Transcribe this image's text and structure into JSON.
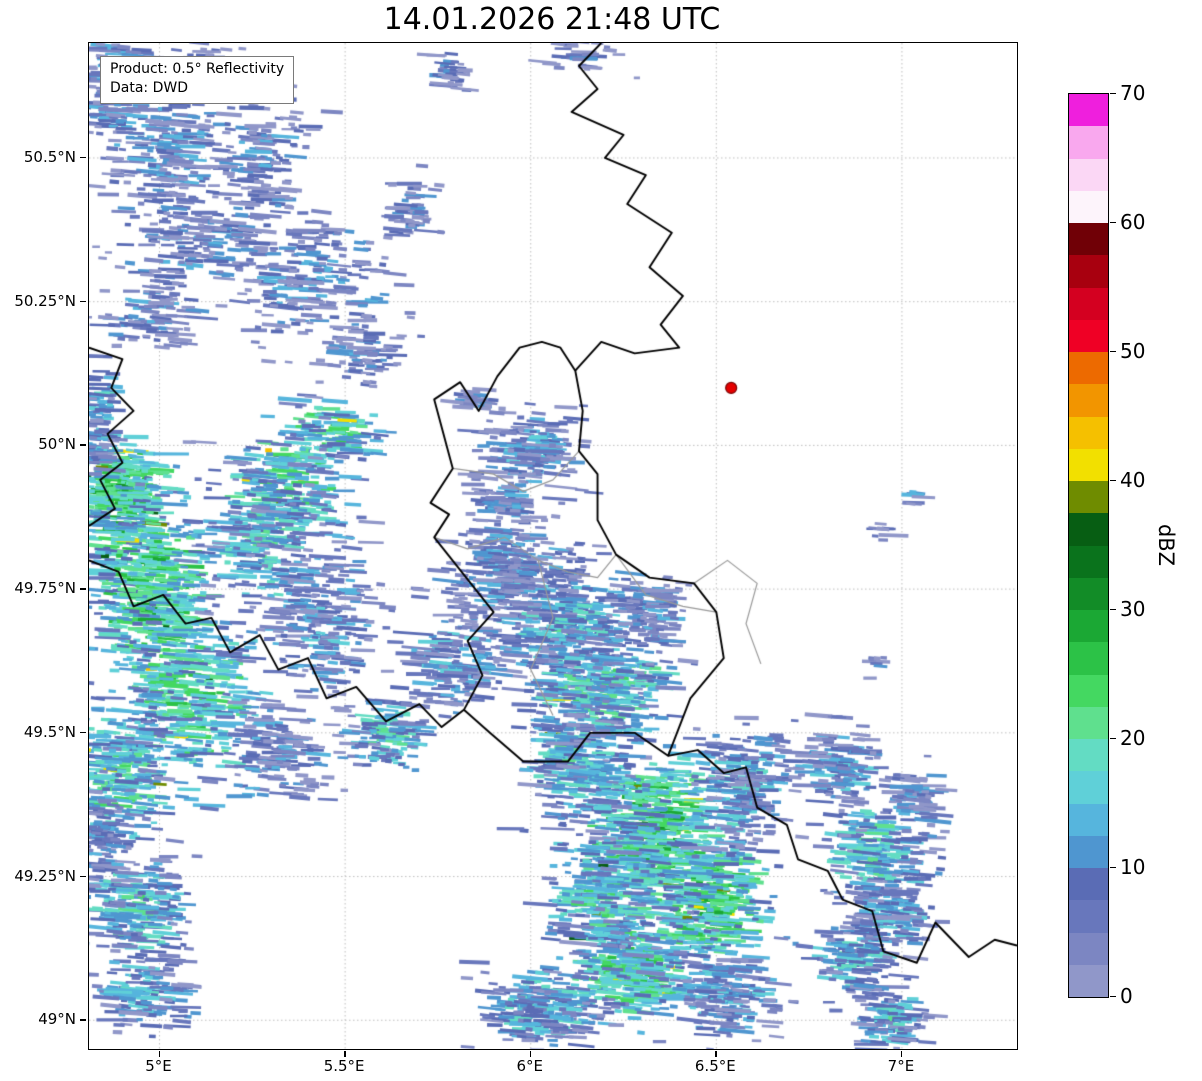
{
  "title": "14.01.2026 21:48 UTC",
  "annotation": {
    "line1": "Product: 0.5° Reflectivity",
    "line2": "Data: DWD"
  },
  "axes": {
    "lon_min": 4.81,
    "lon_max": 7.31,
    "lat_min": 48.95,
    "lat_max": 50.7,
    "x_ticks": [
      {
        "v": 5.0,
        "label": "5°E"
      },
      {
        "v": 5.5,
        "label": "5.5°E"
      },
      {
        "v": 6.0,
        "label": "6°E"
      },
      {
        "v": 6.5,
        "label": "6.5°E"
      },
      {
        "v": 7.0,
        "label": "7°E"
      }
    ],
    "y_ticks": [
      {
        "v": 50.5,
        "label": "50.5°N"
      },
      {
        "v": 50.25,
        "label": "50.25°N"
      },
      {
        "v": 50.0,
        "label": "50°N"
      },
      {
        "v": 49.75,
        "label": "49.75°N"
      },
      {
        "v": 49.5,
        "label": "49.5°N"
      },
      {
        "v": 49.25,
        "label": "49.25°N"
      },
      {
        "v": 49.0,
        "label": "49°N"
      }
    ]
  },
  "colorbar": {
    "label": "dBZ",
    "min": 0,
    "max": 70,
    "ticks": [
      {
        "v": 0,
        "label": "0"
      },
      {
        "v": 10,
        "label": "10"
      },
      {
        "v": 20,
        "label": "20"
      },
      {
        "v": 30,
        "label": "30"
      },
      {
        "v": 40,
        "label": "40"
      },
      {
        "v": 50,
        "label": "50"
      },
      {
        "v": 60,
        "label": "60"
      },
      {
        "v": 70,
        "label": "70"
      }
    ],
    "colors_bottom_to_top": [
      "#9097c9",
      "#7c86c2",
      "#6877bc",
      "#5a6cb5",
      "#4f96d0",
      "#56b5dd",
      "#5fd0d8",
      "#63dcc3",
      "#5fe08e",
      "#44d861",
      "#2cc247",
      "#1ba834",
      "#128c27",
      "#0a731c",
      "#075e13",
      "#6f8c00",
      "#f2e000",
      "#f5c000",
      "#f29500",
      "#ed6a00",
      "#ef0025",
      "#d40020",
      "#a8000f",
      "#700006",
      "#fdf4fb",
      "#fbd7f5",
      "#f9a8ee",
      "#ef1fdd"
    ]
  },
  "marker": {
    "lon": 6.54,
    "lat": 50.1,
    "color": "#e50000",
    "edge": "#7a0000"
  },
  "map": {
    "grid_color": "#bfbfbf",
    "border_color": "#000000",
    "admin_border_color": "#999999",
    "radar_cells": [
      [
        4.88,
        50.63,
        0.22,
        0.18,
        11,
        130
      ],
      [
        5.02,
        50.52,
        0.38,
        0.28,
        10,
        170
      ],
      [
        5.28,
        50.5,
        0.3,
        0.22,
        9,
        110
      ],
      [
        5.12,
        50.66,
        0.2,
        0.1,
        6,
        35
      ],
      [
        5.12,
        50.36,
        0.45,
        0.18,
        9,
        120
      ],
      [
        5.42,
        50.29,
        0.45,
        0.22,
        10,
        150
      ],
      [
        4.98,
        50.24,
        0.28,
        0.14,
        9,
        80
      ],
      [
        5.68,
        50.41,
        0.16,
        0.12,
        8,
        45
      ],
      [
        5.78,
        50.65,
        0.12,
        0.08,
        7,
        25
      ],
      [
        6.15,
        50.68,
        0.22,
        0.06,
        7,
        30
      ],
      [
        5.55,
        50.15,
        0.22,
        0.12,
        8,
        55
      ],
      [
        5.85,
        50.08,
        0.12,
        0.05,
        8,
        20
      ],
      [
        5.47,
        50.02,
        0.22,
        0.1,
        22,
        70
      ],
      [
        5.35,
        49.93,
        0.33,
        0.18,
        21,
        150
      ],
      [
        4.9,
        49.91,
        0.25,
        0.2,
        26,
        240
      ],
      [
        4.98,
        49.74,
        0.33,
        0.28,
        25,
        300
      ],
      [
        5.08,
        49.56,
        0.38,
        0.28,
        22,
        260
      ],
      [
        4.88,
        49.42,
        0.28,
        0.24,
        20,
        180
      ],
      [
        5.28,
        49.84,
        0.3,
        0.24,
        17,
        160
      ],
      [
        5.44,
        49.7,
        0.3,
        0.28,
        12,
        170
      ],
      [
        5.33,
        49.46,
        0.3,
        0.18,
        10,
        100
      ],
      [
        4.84,
        50.05,
        0.1,
        0.2,
        14,
        70
      ],
      [
        6.0,
        49.99,
        0.28,
        0.14,
        12,
        120
      ],
      [
        5.93,
        49.9,
        0.18,
        0.09,
        10,
        60
      ],
      [
        5.95,
        49.78,
        0.42,
        0.18,
        11,
        210
      ],
      [
        6.1,
        49.68,
        0.42,
        0.18,
        16,
        230
      ],
      [
        6.2,
        49.57,
        0.38,
        0.16,
        20,
        210
      ],
      [
        5.8,
        49.62,
        0.28,
        0.18,
        12,
        130
      ],
      [
        6.33,
        49.71,
        0.2,
        0.14,
        10,
        80
      ],
      [
        5.62,
        49.5,
        0.2,
        0.12,
        18,
        80
      ],
      [
        6.33,
        49.34,
        0.34,
        0.24,
        26,
        320
      ],
      [
        6.48,
        49.21,
        0.34,
        0.24,
        24,
        280
      ],
      [
        6.28,
        49.09,
        0.34,
        0.18,
        22,
        240
      ],
      [
        6.13,
        49.44,
        0.28,
        0.18,
        18,
        180
      ],
      [
        6.58,
        49.41,
        0.24,
        0.18,
        14,
        160
      ],
      [
        6.03,
        49.02,
        0.34,
        0.14,
        16,
        160
      ],
      [
        6.53,
        49.04,
        0.28,
        0.14,
        13,
        120
      ],
      [
        6.2,
        49.22,
        0.3,
        0.2,
        20,
        200
      ],
      [
        6.83,
        49.44,
        0.24,
        0.14,
        12,
        100
      ],
      [
        6.93,
        49.29,
        0.28,
        0.18,
        18,
        160
      ],
      [
        6.88,
        49.11,
        0.24,
        0.14,
        16,
        100
      ],
      [
        7.04,
        49.39,
        0.14,
        0.1,
        10,
        50
      ],
      [
        6.98,
        49.18,
        0.2,
        0.1,
        14,
        80
      ],
      [
        6.97,
        49.0,
        0.2,
        0.1,
        16,
        80
      ],
      [
        4.94,
        49.19,
        0.28,
        0.18,
        18,
        160
      ],
      [
        4.98,
        49.05,
        0.28,
        0.14,
        14,
        100
      ],
      [
        4.85,
        49.31,
        0.14,
        0.14,
        12,
        60
      ],
      [
        6.95,
        49.85,
        0.06,
        0.04,
        9,
        8
      ],
      [
        6.93,
        49.62,
        0.05,
        0.04,
        9,
        7
      ],
      [
        7.03,
        49.91,
        0.05,
        0.03,
        10,
        6
      ]
    ],
    "country_borders": [
      [
        [
          6.19,
          50.7
        ],
        [
          6.13,
          50.66
        ],
        [
          6.18,
          50.62
        ],
        [
          6.11,
          50.58
        ],
        [
          6.25,
          50.54
        ],
        [
          6.2,
          50.5
        ],
        [
          6.31,
          50.47
        ],
        [
          6.26,
          50.42
        ],
        [
          6.38,
          50.37
        ],
        [
          6.32,
          50.31
        ],
        [
          6.41,
          50.26
        ],
        [
          6.35,
          50.21
        ],
        [
          6.4,
          50.17
        ],
        [
          6.28,
          50.16
        ],
        [
          6.19,
          50.18
        ],
        [
          6.12,
          50.13
        ]
      ],
      [
        [
          6.12,
          50.13
        ],
        [
          6.08,
          50.17
        ],
        [
          6.03,
          50.18
        ],
        [
          5.97,
          50.17
        ],
        [
          5.91,
          50.12
        ],
        [
          5.86,
          50.06
        ],
        [
          5.81,
          50.11
        ],
        [
          5.74,
          50.08
        ],
        [
          5.79,
          49.96
        ],
        [
          5.73,
          49.9
        ],
        [
          5.78,
          49.88
        ],
        [
          5.74,
          49.84
        ],
        [
          5.9,
          49.71
        ],
        [
          5.83,
          49.66
        ],
        [
          5.87,
          49.6
        ],
        [
          5.82,
          49.54
        ],
        [
          5.89,
          49.5
        ],
        [
          5.98,
          49.45
        ],
        [
          6.1,
          49.45
        ],
        [
          6.16,
          49.5
        ],
        [
          6.28,
          49.5
        ],
        [
          6.37,
          49.46
        ],
        [
          6.43,
          49.56
        ],
        [
          6.52,
          49.63
        ],
        [
          6.5,
          49.71
        ],
        [
          6.44,
          49.76
        ],
        [
          6.32,
          49.77
        ],
        [
          6.23,
          49.81
        ],
        [
          6.18,
          49.87
        ],
        [
          6.18,
          49.95
        ],
        [
          6.13,
          49.99
        ],
        [
          6.14,
          50.06
        ],
        [
          6.12,
          50.13
        ]
      ],
      [
        [
          4.81,
          50.17
        ],
        [
          4.9,
          50.15
        ],
        [
          4.87,
          50.1
        ],
        [
          4.93,
          50.06
        ],
        [
          4.86,
          50.02
        ],
        [
          4.9,
          49.97
        ],
        [
          4.84,
          49.94
        ],
        [
          4.88,
          49.89
        ],
        [
          4.81,
          49.86
        ]
      ],
      [
        [
          4.81,
          49.8
        ],
        [
          4.89,
          49.78
        ],
        [
          4.93,
          49.72
        ],
        [
          5.01,
          49.74
        ],
        [
          5.07,
          49.69
        ],
        [
          5.14,
          49.7
        ],
        [
          5.19,
          49.64
        ],
        [
          5.27,
          49.67
        ],
        [
          5.32,
          49.61
        ],
        [
          5.4,
          49.63
        ],
        [
          5.45,
          49.56
        ],
        [
          5.53,
          49.58
        ],
        [
          5.61,
          49.52
        ],
        [
          5.7,
          49.55
        ],
        [
          5.76,
          49.51
        ],
        [
          5.82,
          49.54
        ]
      ],
      [
        [
          6.37,
          49.46
        ],
        [
          6.45,
          49.47
        ],
        [
          6.52,
          49.43
        ],
        [
          6.58,
          49.44
        ],
        [
          6.61,
          49.37
        ],
        [
          6.69,
          49.34
        ],
        [
          6.72,
          49.28
        ],
        [
          6.8,
          49.26
        ],
        [
          6.84,
          49.21
        ],
        [
          6.92,
          49.19
        ],
        [
          6.95,
          49.12
        ],
        [
          7.04,
          49.1
        ],
        [
          7.09,
          49.17
        ],
        [
          7.18,
          49.11
        ],
        [
          7.25,
          49.14
        ],
        [
          7.31,
          49.13
        ]
      ]
    ],
    "admin_borders": [
      [
        [
          5.79,
          49.96
        ],
        [
          5.9,
          49.95
        ],
        [
          5.98,
          49.92
        ],
        [
          6.06,
          49.94
        ],
        [
          6.13,
          49.99
        ]
      ],
      [
        [
          5.74,
          49.84
        ],
        [
          5.83,
          49.82
        ],
        [
          5.93,
          49.84
        ],
        [
          6.02,
          49.8
        ],
        [
          6.1,
          49.78
        ],
        [
          6.18,
          49.77
        ],
        [
          6.23,
          49.81
        ]
      ],
      [
        [
          6.02,
          49.8
        ],
        [
          6.06,
          49.7
        ],
        [
          6.0,
          49.61
        ],
        [
          6.06,
          49.53
        ]
      ],
      [
        [
          6.44,
          49.76
        ],
        [
          6.53,
          49.8
        ],
        [
          6.61,
          49.76
        ],
        [
          6.58,
          49.69
        ],
        [
          6.62,
          49.62
        ]
      ],
      [
        [
          6.23,
          49.81
        ],
        [
          6.31,
          49.74
        ],
        [
          6.41,
          49.72
        ],
        [
          6.5,
          49.71
        ]
      ]
    ]
  }
}
